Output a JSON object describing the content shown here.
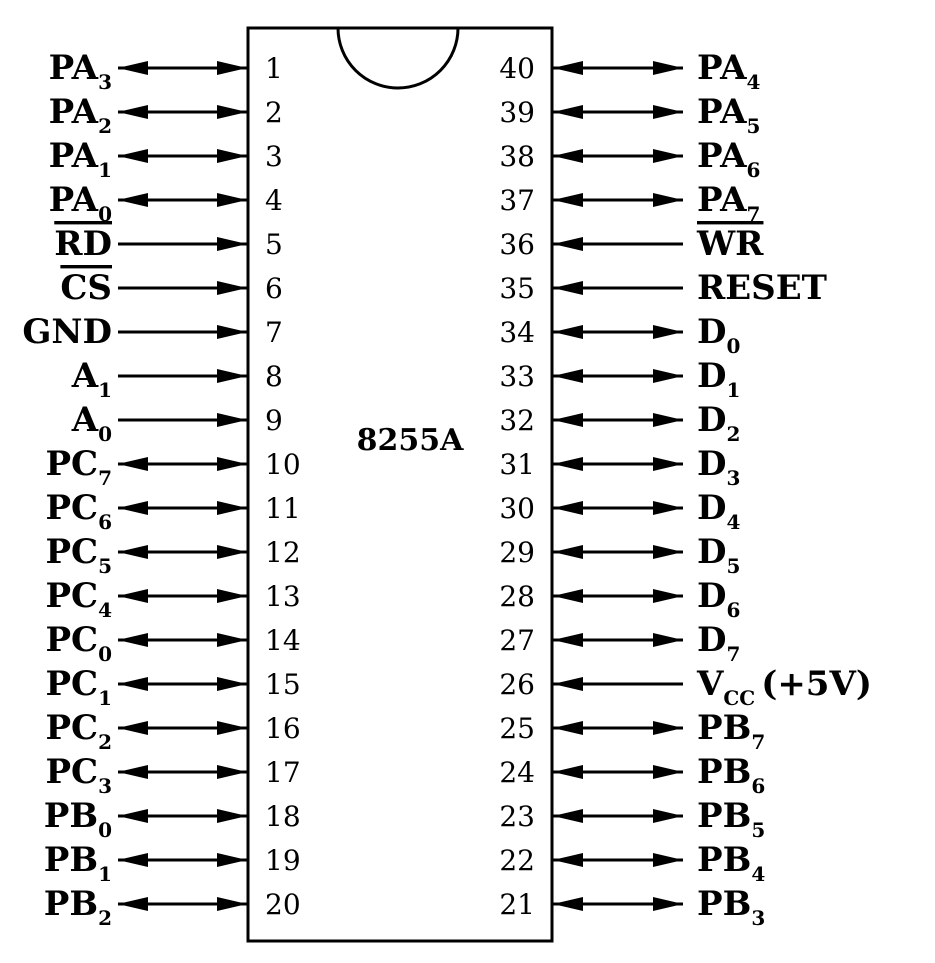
{
  "chip": {
    "name": "8255A"
  },
  "left_pins": [
    {
      "num": "1",
      "base": "PA",
      "sub": "3",
      "dir": "bi",
      "overline": false
    },
    {
      "num": "2",
      "base": "PA",
      "sub": "2",
      "dir": "bi",
      "overline": false
    },
    {
      "num": "3",
      "base": "PA",
      "sub": "1",
      "dir": "bi",
      "overline": false
    },
    {
      "num": "4",
      "base": "PA",
      "sub": "0",
      "dir": "bi",
      "overline": false
    },
    {
      "num": "5",
      "base": "RD",
      "sub": "",
      "dir": "in",
      "overline": true
    },
    {
      "num": "6",
      "base": "CS",
      "sub": "",
      "dir": "in",
      "overline": true
    },
    {
      "num": "7",
      "base": "GND",
      "sub": "",
      "dir": "in",
      "overline": false
    },
    {
      "num": "8",
      "base": "A",
      "sub": "1",
      "dir": "in",
      "overline": false
    },
    {
      "num": "9",
      "base": "A",
      "sub": "0",
      "dir": "in",
      "overline": false
    },
    {
      "num": "10",
      "base": "PC",
      "sub": "7",
      "dir": "bi",
      "overline": false
    },
    {
      "num": "11",
      "base": "PC",
      "sub": "6",
      "dir": "bi",
      "overline": false
    },
    {
      "num": "12",
      "base": "PC",
      "sub": "5",
      "dir": "bi",
      "overline": false
    },
    {
      "num": "13",
      "base": "PC",
      "sub": "4",
      "dir": "bi",
      "overline": false
    },
    {
      "num": "14",
      "base": "PC",
      "sub": "0",
      "dir": "bi",
      "overline": false
    },
    {
      "num": "15",
      "base": "PC",
      "sub": "1",
      "dir": "bi",
      "overline": false
    },
    {
      "num": "16",
      "base": "PC",
      "sub": "2",
      "dir": "bi",
      "overline": false
    },
    {
      "num": "17",
      "base": "PC",
      "sub": "3",
      "dir": "bi",
      "overline": false
    },
    {
      "num": "18",
      "base": "PB",
      "sub": "0",
      "dir": "bi",
      "overline": false
    },
    {
      "num": "19",
      "base": "PB",
      "sub": "1",
      "dir": "bi",
      "overline": false
    },
    {
      "num": "20",
      "base": "PB",
      "sub": "2",
      "dir": "bi",
      "overline": false
    }
  ],
  "right_pins": [
    {
      "num": "40",
      "base": "PA",
      "sub": "4",
      "suffix": "",
      "dir": "bi",
      "overline": false
    },
    {
      "num": "39",
      "base": "PA",
      "sub": "5",
      "suffix": "",
      "dir": "bi",
      "overline": false
    },
    {
      "num": "38",
      "base": "PA",
      "sub": "6",
      "suffix": "",
      "dir": "bi",
      "overline": false
    },
    {
      "num": "37",
      "base": "PA",
      "sub": "7",
      "suffix": "",
      "dir": "bi",
      "overline": false
    },
    {
      "num": "36",
      "base": "WR",
      "sub": "",
      "suffix": "",
      "dir": "in",
      "overline": true
    },
    {
      "num": "35",
      "base": "RESET",
      "sub": "",
      "suffix": "",
      "dir": "in",
      "overline": false
    },
    {
      "num": "34",
      "base": "D",
      "sub": "0",
      "suffix": "",
      "dir": "bi",
      "overline": false
    },
    {
      "num": "33",
      "base": "D",
      "sub": "1",
      "suffix": "",
      "dir": "bi",
      "overline": false
    },
    {
      "num": "32",
      "base": "D",
      "sub": "2",
      "suffix": "",
      "dir": "bi",
      "overline": false
    },
    {
      "num": "31",
      "base": "D",
      "sub": "3",
      "suffix": "",
      "dir": "bi",
      "overline": false
    },
    {
      "num": "30",
      "base": "D",
      "sub": "4",
      "suffix": "",
      "dir": "bi",
      "overline": false
    },
    {
      "num": "29",
      "base": "D",
      "sub": "5",
      "suffix": "",
      "dir": "bi",
      "overline": false
    },
    {
      "num": "28",
      "base": "D",
      "sub": "6",
      "suffix": "",
      "dir": "bi",
      "overline": false
    },
    {
      "num": "27",
      "base": "D",
      "sub": "7",
      "suffix": "",
      "dir": "bi",
      "overline": false
    },
    {
      "num": "26",
      "base": "V",
      "sub": "CC",
      "suffix": "(+5V)",
      "dir": "in",
      "overline": false
    },
    {
      "num": "25",
      "base": "PB",
      "sub": "7",
      "suffix": "",
      "dir": "bi",
      "overline": false
    },
    {
      "num": "24",
      "base": "PB",
      "sub": "6",
      "suffix": "",
      "dir": "bi",
      "overline": false
    },
    {
      "num": "23",
      "base": "PB",
      "sub": "5",
      "suffix": "",
      "dir": "bi",
      "overline": false
    },
    {
      "num": "22",
      "base": "PB",
      "sub": "4",
      "suffix": "",
      "dir": "bi",
      "overline": false
    },
    {
      "num": "21",
      "base": "PB",
      "sub": "3",
      "suffix": "",
      "dir": "bi",
      "overline": false
    }
  ]
}
